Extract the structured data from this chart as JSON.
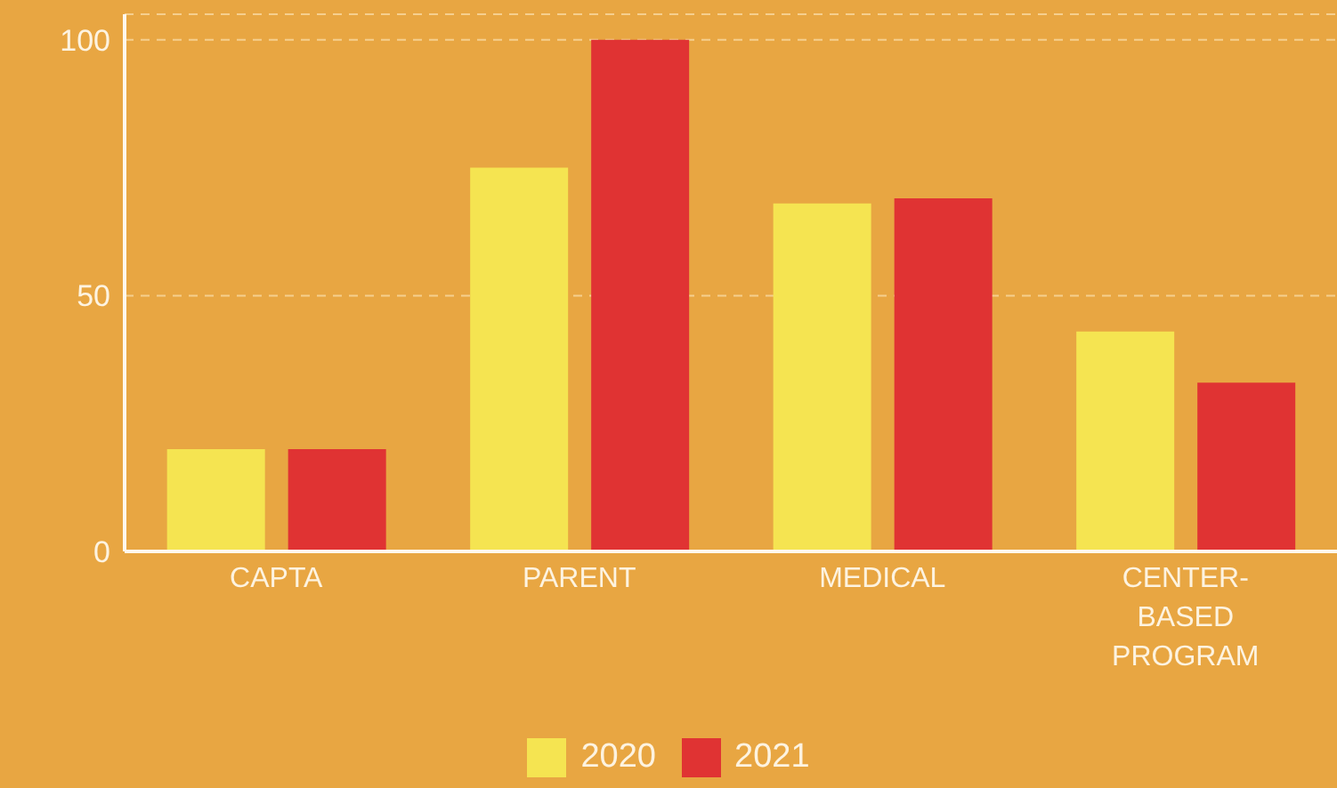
{
  "chart_data": {
    "type": "bar",
    "categories": [
      "CAPTA",
      "PARENT",
      "MEDICAL",
      "CENTER-BASED PROGRAM"
    ],
    "series": [
      {
        "name": "2020",
        "color": "#f5e451",
        "values": [
          20,
          75,
          68,
          43
        ]
      },
      {
        "name": "2021",
        "color": "#e03333",
        "values": [
          20,
          100,
          69,
          33
        ]
      }
    ],
    "ylim": [
      0,
      105
    ],
    "yticks": [
      0,
      50,
      100
    ],
    "grid": "y",
    "legend": "bottom"
  }
}
